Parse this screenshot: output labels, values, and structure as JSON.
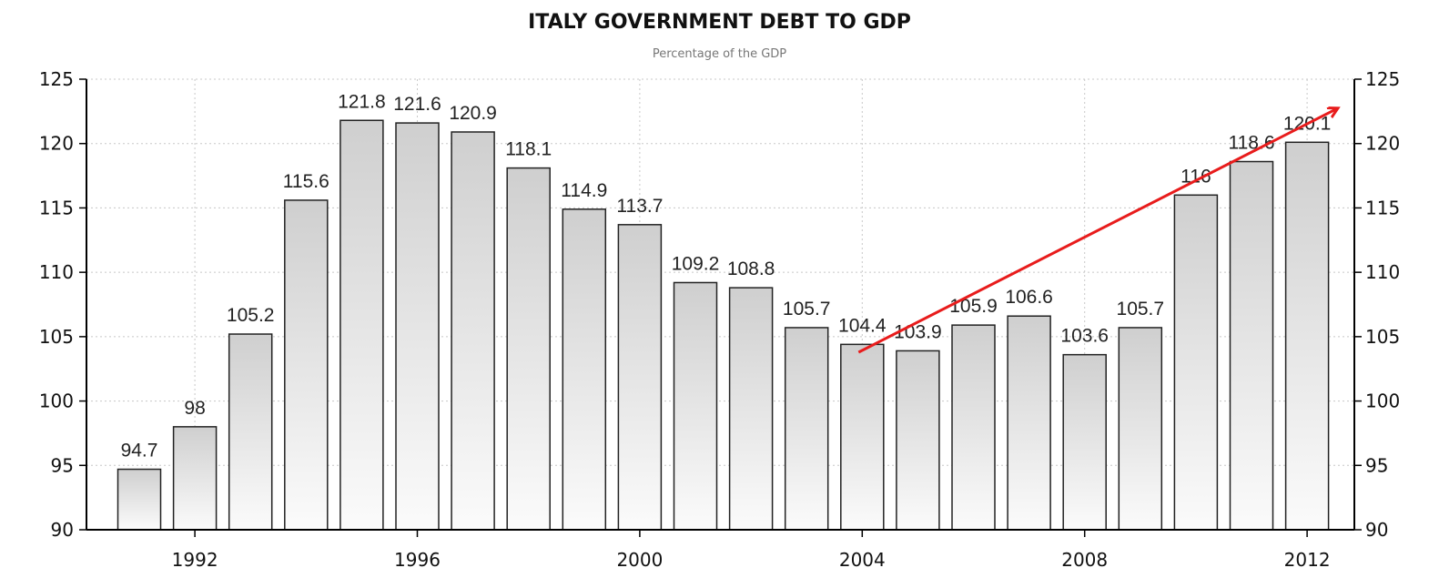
{
  "chart_data": {
    "type": "bar",
    "title": "ITALY GOVERNMENT DEBT TO GDP",
    "subtitle": "Percentage of the GDP",
    "categories": [
      "1991",
      "1992",
      "1993",
      "1994",
      "1995",
      "1996",
      "1997",
      "1998",
      "1999",
      "2000",
      "2001",
      "2002",
      "2003",
      "2004",
      "2005",
      "2006",
      "2007",
      "2008",
      "2009",
      "2010",
      "2011",
      "2012"
    ],
    "values": [
      94.7,
      98,
      105.2,
      115.6,
      121.8,
      121.6,
      120.9,
      118.1,
      114.9,
      113.7,
      109.2,
      108.8,
      105.7,
      104.4,
      103.9,
      105.9,
      106.6,
      103.6,
      105.7,
      116,
      118.6,
      120.1
    ],
    "x_tick_labels": [
      "1992",
      "1996",
      "2000",
      "2004",
      "2008",
      "2012"
    ],
    "y_tick_labels": [
      "90",
      "95",
      "100",
      "105",
      "110",
      "115",
      "120",
      "125"
    ],
    "ylim": [
      90,
      125
    ],
    "y_axis_sides": "left and right",
    "grid": true,
    "bar_color": "gradient light grey",
    "annotations": [
      {
        "type": "arrow",
        "color": "#e81c1c",
        "from": {
          "x": "2004",
          "y": 104
        },
        "to": {
          "x": "2012",
          "y": 123
        }
      }
    ]
  }
}
